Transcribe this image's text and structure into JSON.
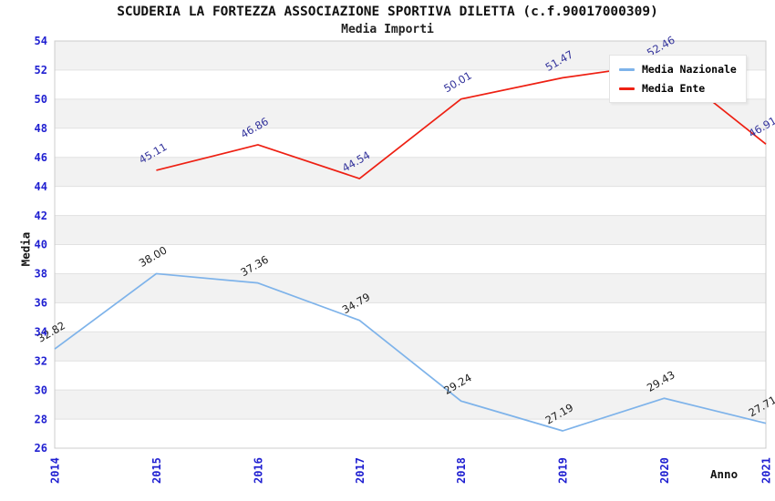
{
  "header": {
    "title": "SCUDERIA LA FORTEZZA ASSOCIAZIONE SPORTIVA DILETTA (c.f.90017000309)",
    "subtitle": "Media Importi"
  },
  "colors": {
    "band_fill": "#f2f2f2",
    "grid_line": "#e1e1e1",
    "plot_border": "#cccccc",
    "tick_label": "#1f1fd1",
    "axis_title": "#111111"
  },
  "chart_data": {
    "type": "line",
    "title": "SCUDERIA LA FORTEZZA ASSOCIAZIONE SPORTIVA DILETTA (c.f.90017000309)",
    "subtitle": "Media Importi",
    "xlabel": "Anno",
    "ylabel": "Media",
    "x": [
      2014,
      2015,
      2016,
      2017,
      2018,
      2019,
      2020,
      2021
    ],
    "series": [
      {
        "name": "Media Nazionale",
        "color": "#7eb3ea",
        "label_color": "#1c1c1c",
        "values": [
          32.82,
          38.0,
          37.36,
          34.79,
          29.24,
          27.19,
          29.43,
          27.71
        ]
      },
      {
        "name": "Media Ente",
        "color": "#ee2013",
        "label_color": "#32329b",
        "values": [
          null,
          45.11,
          46.86,
          44.54,
          50.01,
          51.47,
          52.46,
          46.91
        ]
      }
    ],
    "ylim": [
      26,
      54
    ],
    "ytick_step": 2,
    "grid": true,
    "banded_background": true,
    "legend_position": "top-right"
  }
}
